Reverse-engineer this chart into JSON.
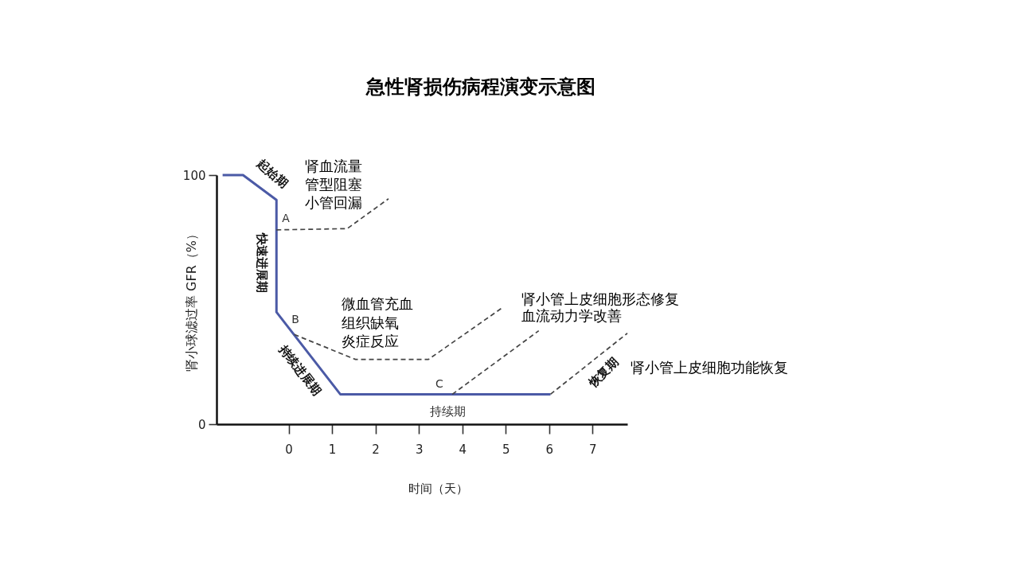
{
  "chart_data": {
    "type": "line",
    "title": "急性肾损伤病程演变示意图",
    "xlabel": "时间（天）",
    "ylabel": "肾小球滤过率 GFR（%）",
    "xlim": [
      -1.66,
      7.8
    ],
    "xticks": [
      0,
      1,
      2,
      3,
      4,
      5,
      6,
      7
    ],
    "ylim": [
      0,
      100
    ],
    "yticks": [
      0,
      100
    ],
    "grid": false,
    "series": [
      {
        "color": "#4b5aa6",
        "line_style": "solid",
        "x": [
          -1.52,
          -1.05,
          -0.28,
          -0.28,
          1.19,
          6.03
        ],
        "values": [
          100,
          100,
          90,
          45,
          12,
          12
        ]
      },
      {
        "color": "#444444",
        "line_style": "dashed",
        "x": [
          -0.28,
          1.35,
          2.3
        ],
        "values": [
          78,
          78.5,
          90.5
        ]
      },
      {
        "color": "#444444",
        "line_style": "dashed",
        "x": [
          0.13,
          1.54,
          3.22,
          4.9
        ],
        "values": [
          36,
          26,
          26,
          46.5
        ]
      },
      {
        "color": "#444444",
        "line_style": "dashed",
        "x": [
          3.77,
          5.76
        ],
        "values": [
          12,
          37.5
        ]
      },
      {
        "color": "#444444",
        "line_style": "dashed",
        "x": [
          6.03,
          7.8
        ],
        "values": [
          12,
          36.5
        ]
      }
    ],
    "annotations": [
      "起始期",
      "A",
      "快速进展期",
      "肾血流量",
      "管型阻塞",
      "小管回漏",
      "B",
      "持续进展期",
      "微血管充血",
      "组织缺氧",
      "炎症反应",
      "C",
      "持续期",
      "肾小管上皮细胞形态修复",
      "血流动力学改善",
      "恢复期",
      "肾小管上皮细胞功能恢复"
    ]
  }
}
